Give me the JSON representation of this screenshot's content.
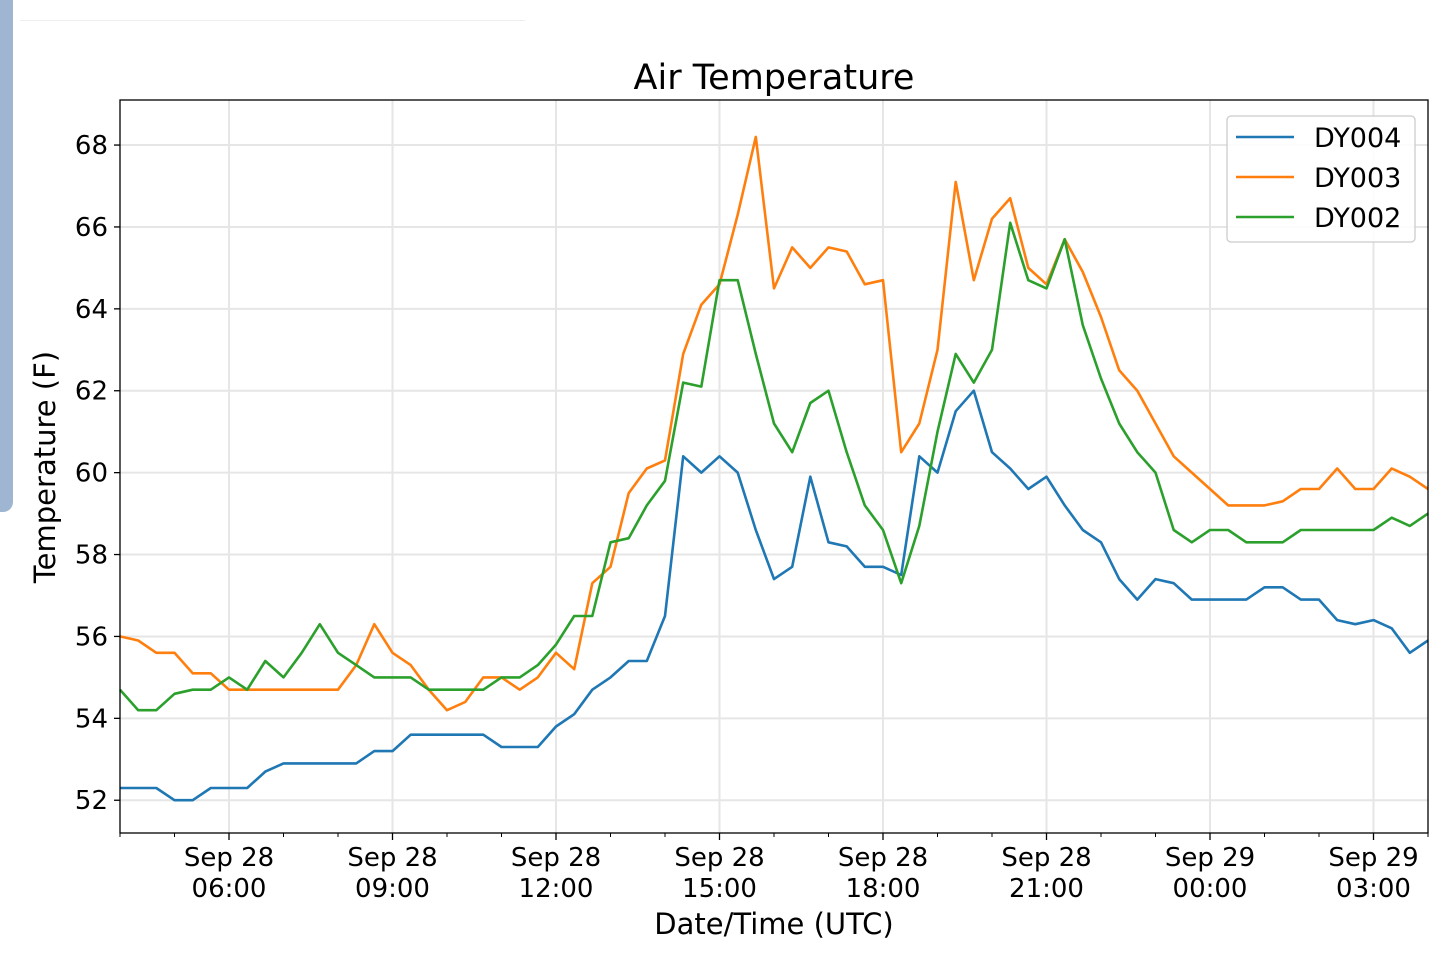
{
  "chart_data": {
    "type": "line",
    "title": "Air Temperature",
    "xlabel": "Date/Time (UTC)",
    "ylabel": "Temperature (F)",
    "x_unit": "hours since Sep 28 00:00 UTC",
    "x_start": 4,
    "x_step": 0.3333333,
    "xlim": [
      4,
      28
    ],
    "ylim": [
      51.2,
      69.1
    ],
    "grid": true,
    "legend_position": "top-right",
    "yticks": [
      52,
      54,
      56,
      58,
      60,
      62,
      64,
      66,
      68
    ],
    "xticks": [
      {
        "value": 6,
        "line1": "Sep 28",
        "line2": "06:00"
      },
      {
        "value": 9,
        "line1": "Sep 28",
        "line2": "09:00"
      },
      {
        "value": 12,
        "line1": "Sep 28",
        "line2": "12:00"
      },
      {
        "value": 15,
        "line1": "Sep 28",
        "line2": "15:00"
      },
      {
        "value": 18,
        "line1": "Sep 28",
        "line2": "18:00"
      },
      {
        "value": 21,
        "line1": "Sep 28",
        "line2": "21:00"
      },
      {
        "value": 24,
        "line1": "Sep 29",
        "line2": "00:00"
      },
      {
        "value": 27,
        "line1": "Sep 29",
        "line2": "03:00"
      }
    ],
    "series": [
      {
        "name": "DY004",
        "color": "#1f77b4",
        "values": [
          52.3,
          52.3,
          52.3,
          52.0,
          52.0,
          52.3,
          52.3,
          52.3,
          52.7,
          52.9,
          52.9,
          52.9,
          52.9,
          52.9,
          53.2,
          53.2,
          53.6,
          53.6,
          53.6,
          53.6,
          53.6,
          53.3,
          53.3,
          53.3,
          53.8,
          54.1,
          54.7,
          55.0,
          55.4,
          55.4,
          56.5,
          60.4,
          60.0,
          60.4,
          60.0,
          58.6,
          57.4,
          57.7,
          59.9,
          58.3,
          58.2,
          57.7,
          57.7,
          57.5,
          60.4,
          60.0,
          61.5,
          62.0,
          60.5,
          60.1,
          59.6,
          59.9,
          59.2,
          58.6,
          58.3,
          57.4,
          56.9,
          57.4,
          57.3,
          56.9,
          56.9,
          56.9,
          56.9,
          57.2,
          57.2,
          56.9,
          56.9,
          56.4,
          56.3,
          56.4,
          56.2,
          55.6,
          55.9
        ]
      },
      {
        "name": "DY003",
        "color": "#ff7f0e",
        "values": [
          56.0,
          55.9,
          55.6,
          55.6,
          55.1,
          55.1,
          54.7,
          54.7,
          54.7,
          54.7,
          54.7,
          54.7,
          54.7,
          55.3,
          56.3,
          55.6,
          55.3,
          54.7,
          54.2,
          54.4,
          55.0,
          55.0,
          54.7,
          55.0,
          55.6,
          55.2,
          57.3,
          57.7,
          59.5,
          60.1,
          60.3,
          62.9,
          64.1,
          64.6,
          66.3,
          68.2,
          64.5,
          65.5,
          65.0,
          65.5,
          65.4,
          64.6,
          64.7,
          60.5,
          61.2,
          63.0,
          67.1,
          64.7,
          66.2,
          66.7,
          65.0,
          64.6,
          65.7,
          64.9,
          63.8,
          62.5,
          62.0,
          61.2,
          60.4,
          60.0,
          59.6,
          59.2,
          59.2,
          59.2,
          59.3,
          59.6,
          59.6,
          60.1,
          59.6,
          59.6,
          60.1,
          59.9,
          59.6
        ]
      },
      {
        "name": "DY002",
        "color": "#2ca02c",
        "values": [
          54.7,
          54.2,
          54.2,
          54.6,
          54.7,
          54.7,
          55.0,
          54.7,
          55.4,
          55.0,
          55.6,
          56.3,
          55.6,
          55.3,
          55.0,
          55.0,
          55.0,
          54.7,
          54.7,
          54.7,
          54.7,
          55.0,
          55.0,
          55.3,
          55.8,
          56.5,
          56.5,
          58.3,
          58.4,
          59.2,
          59.8,
          62.2,
          62.1,
          64.7,
          64.7,
          62.9,
          61.2,
          60.5,
          61.7,
          62.0,
          60.5,
          59.2,
          58.6,
          57.3,
          58.7,
          61.0,
          62.9,
          62.2,
          63.0,
          66.1,
          64.7,
          64.5,
          65.7,
          63.6,
          62.3,
          61.2,
          60.5,
          60.0,
          58.6,
          58.3,
          58.6,
          58.6,
          58.3,
          58.3,
          58.3,
          58.6,
          58.6,
          58.6,
          58.6,
          58.6,
          58.9,
          58.7,
          59.0
        ]
      }
    ]
  }
}
